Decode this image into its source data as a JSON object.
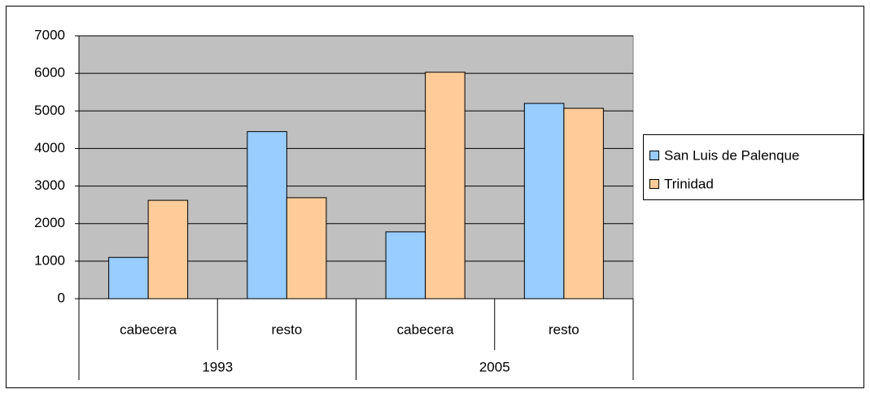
{
  "chart_data": {
    "type": "bar",
    "groups": [
      {
        "label": "1993",
        "categories": [
          "cabecera",
          "resto"
        ]
      },
      {
        "label": "2005",
        "categories": [
          "cabecera",
          "resto"
        ]
      }
    ],
    "series": [
      {
        "name": "San Luis de Palenque",
        "color": "#99ccff",
        "values": [
          1100,
          4450,
          1780,
          5200
        ]
      },
      {
        "name": "Trinidad",
        "color": "#ffcc99",
        "values": [
          2620,
          2690,
          6030,
          5070
        ]
      }
    ],
    "ylim": [
      0,
      7000
    ],
    "yticks": [
      0,
      1000,
      2000,
      3000,
      4000,
      5000,
      6000,
      7000
    ],
    "grid": true,
    "legend": "right"
  }
}
